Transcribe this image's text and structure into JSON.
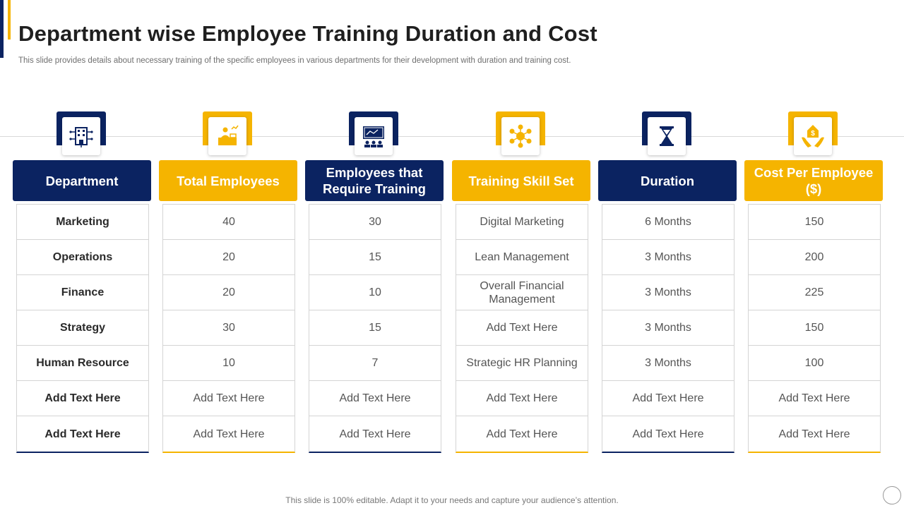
{
  "slide": {
    "title": "Department wise Employee Training Duration and Cost",
    "subtitle": "This slide provides details about necessary training of the specific employees in various departments for their development with duration and training cost.",
    "footer": "This slide is 100% editable. Adapt it to your needs and capture your audience’s attention."
  },
  "colors": {
    "navy": "#0b2361",
    "gold": "#f5b400"
  },
  "columns": [
    {
      "icon": "building-icon",
      "header": "Department",
      "cells": [
        "Marketing",
        "Operations",
        "Finance",
        "Strategy",
        "Human Resource",
        "Add Text Here",
        "Add Text Here"
      ]
    },
    {
      "icon": "desk-employee-icon",
      "header": "Total Employees",
      "cells": [
        "40",
        "20",
        "20",
        "30",
        "10",
        "Add Text Here",
        "Add Text Here"
      ]
    },
    {
      "icon": "presentation-board-icon",
      "header": "Employees that Require Training",
      "cells": [
        "30",
        "15",
        "10",
        "15",
        "7",
        "Add Text Here",
        "Add Text Here"
      ]
    },
    {
      "icon": "skill-network-icon",
      "header": "Training Skill Set",
      "cells": [
        "Digital Marketing",
        "Lean Management",
        "Overall Financial Management",
        "Add Text Here",
        "Strategic HR Planning",
        "Add Text Here",
        "Add Text Here"
      ]
    },
    {
      "icon": "hourglass-icon",
      "header": "Duration",
      "cells": [
        "6 Months",
        "3 Months",
        "3 Months",
        "3 Months",
        "3 Months",
        "Add Text Here",
        "Add Text Here"
      ]
    },
    {
      "icon": "money-hands-icon",
      "header": "Cost Per Employee ($)",
      "cells": [
        "150",
        "200",
        "225",
        "150",
        "100",
        "Add Text Here",
        "Add Text Here"
      ]
    }
  ]
}
